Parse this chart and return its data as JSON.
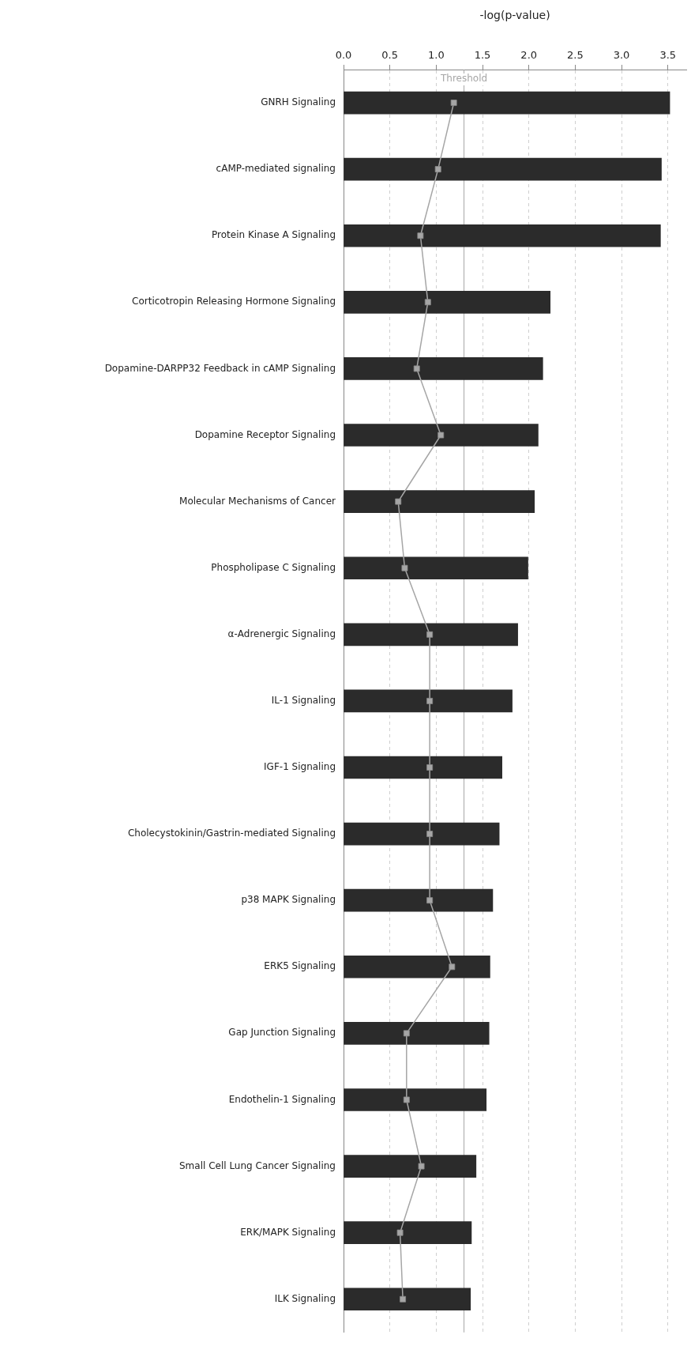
{
  "chart_data": {
    "type": "bar",
    "orientation": "horizontal",
    "xlabel": "-log(p-value)",
    "categories": [
      "GNRH Signaling",
      "cAMP-mediated signaling",
      "Protein Kinase A Signaling",
      "Corticotropin Releasing Hormone Signaling",
      "Dopamine-DARPP32 Feedback in cAMP Signaling",
      "Dopamine Receptor Signaling",
      "Molecular Mechanisms of Cancer",
      "Phospholipase C Signaling",
      "α-Adrenergic Signaling",
      "IL-1 Signaling",
      "IGF-1 Signaling",
      "Cholecystokinin/Gastrin-mediated Signaling",
      "p38 MAPK Signaling",
      "ERK5 Signaling",
      "Gap Junction Signaling",
      "Endothelin-1 Signaling",
      "Small Cell Lung Cancer Signaling",
      "ERK/MAPK Signaling",
      "ILK Signaling"
    ],
    "series": [
      {
        "color": "#2b2b2b",
        "values": [
          3.52,
          3.43,
          3.42,
          2.23,
          2.15,
          2.1,
          2.06,
          1.99,
          1.88,
          1.82,
          1.71,
          1.68,
          1.61,
          1.58,
          1.57,
          1.54,
          1.43,
          1.38,
          1.37
        ]
      },
      {
        "type": "line",
        "color": "#a6a6a6",
        "values": [
          1.19,
          1.02,
          0.83,
          0.91,
          0.79,
          1.05,
          0.59,
          0.66,
          0.93,
          0.93,
          0.93,
          0.93,
          0.93,
          1.17,
          0.68,
          0.68,
          0.84,
          0.61,
          0.64
        ]
      }
    ],
    "marker": "square",
    "line_style": "solid",
    "xlim": [
      0,
      3.7
    ],
    "xticks": [
      {
        "value": 0,
        "label": "0.0"
      },
      0.5,
      {
        "value": 1,
        "label": "1.0"
      },
      1.5,
      {
        "value": 2,
        "label": "2.0"
      },
      2.5,
      {
        "value": 3,
        "label": "3.0"
      },
      3.5
    ],
    "grid": "x",
    "legend": false,
    "ref_lines": [
      {
        "axis": "x",
        "value": 1.3,
        "label": "Threshold",
        "color": "#a6a6a6"
      }
    ]
  }
}
